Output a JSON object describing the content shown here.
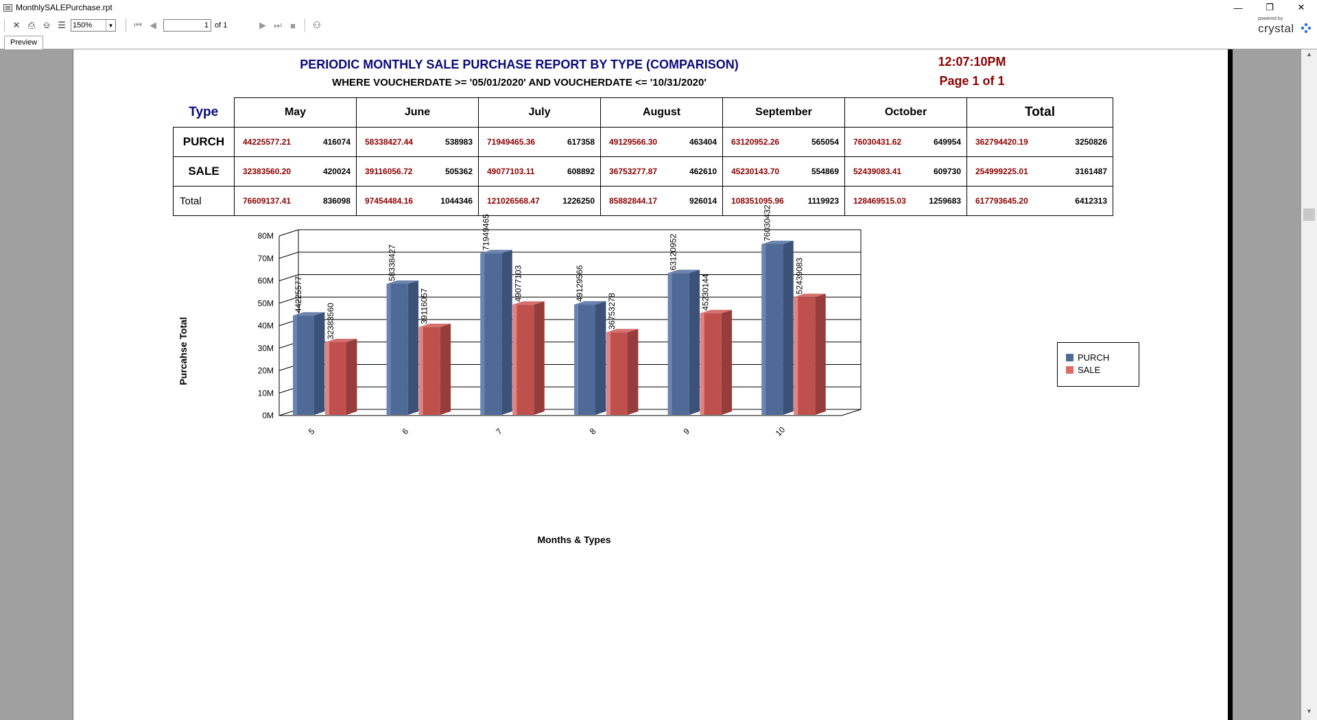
{
  "window": {
    "title": "MonthlySALEPurchase.rpt"
  },
  "toolbar": {
    "zoom": "150%",
    "page_current": "1",
    "page_of": "of 1",
    "logo_powered": "powered by",
    "logo_name": "crystal"
  },
  "tabs": [
    {
      "label": "Preview"
    }
  ],
  "report": {
    "title": "PERIODIC MONTHLY SALE PURCHASE REPORT BY TYPE  (COMPARISON)",
    "subtitle": "WHERE VOUCHERDATE >= '05/01/2020' AND VOUCHERDATE <= '10/31/2020'",
    "time": "12:07:10PM",
    "page": "Page 1 of 1"
  },
  "table": {
    "type_header": "Type",
    "months": [
      "May",
      "June",
      "July",
      "August",
      "September",
      "October"
    ],
    "total_header": "Total",
    "rows": [
      {
        "label": "PURCH",
        "cells": [
          {
            "amount": "44225577.21",
            "count": "416074"
          },
          {
            "amount": "58338427.44",
            "count": "538983"
          },
          {
            "amount": "71949465.36",
            "count": "617358"
          },
          {
            "amount": "49129566.30",
            "count": "463404"
          },
          {
            "amount": "63120952.26",
            "count": "565054"
          },
          {
            "amount": "76030431.62",
            "count": "649954"
          }
        ],
        "total": {
          "amount": "362794420.19",
          "count": "3250826"
        }
      },
      {
        "label": "SALE",
        "cells": [
          {
            "amount": "32383560.20",
            "count": "420024"
          },
          {
            "amount": "39116056.72",
            "count": "505362"
          },
          {
            "amount": "49077103.11",
            "count": "608892"
          },
          {
            "amount": "36753277.87",
            "count": "462610"
          },
          {
            "amount": "45230143.70",
            "count": "554869"
          },
          {
            "amount": "52439083.41",
            "count": "609730"
          }
        ],
        "total": {
          "amount": "254999225.01",
          "count": "3161487"
        }
      },
      {
        "label": "Total",
        "cells": [
          {
            "amount": "76609137.41",
            "count": "836098"
          },
          {
            "amount": "97454484.16",
            "count": "1044346"
          },
          {
            "amount": "121026568.47",
            "count": "1226250"
          },
          {
            "amount": "85882844.17",
            "count": "926014"
          },
          {
            "amount": "108351095.96",
            "count": "1119923"
          },
          {
            "amount": "128469515.03",
            "count": "1259683"
          }
        ],
        "total": {
          "amount": "617793645.20",
          "count": "6412313"
        }
      }
    ]
  },
  "colors": {
    "purch": "#4f6a96",
    "sale": "#c0504d",
    "accent": "#8b0000",
    "title": "#0a0a7a"
  },
  "chart_data": {
    "type": "bar",
    "categories": [
      "5",
      "6",
      "7",
      "8",
      "9",
      "10"
    ],
    "series": [
      {
        "name": "PURCH",
        "values": [
          44225577,
          58338427,
          71949465,
          49129566,
          63120952,
          76030432
        ]
      },
      {
        "name": "SALE",
        "values": [
          32383560,
          39116057,
          49077103,
          36753278,
          45230144,
          52439083
        ]
      }
    ],
    "ylim": [
      0,
      80000000
    ],
    "yticks": [
      "0M",
      "10M",
      "20M",
      "30M",
      "40M",
      "50M",
      "60M",
      "70M",
      "80M"
    ],
    "xlabel": "Months & Types",
    "ylabel": "Purcahse Total",
    "legend": "right",
    "grid": true
  }
}
